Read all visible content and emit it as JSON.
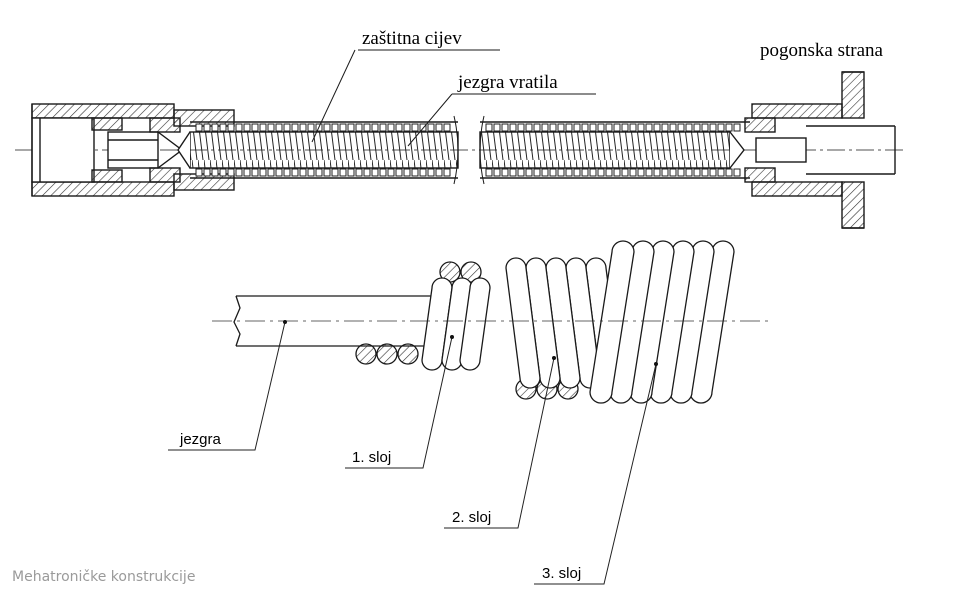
{
  "top_labels": {
    "tube": "zaštitna cijev",
    "core": "jezgra vratila",
    "drive": "pogonska strana"
  },
  "bottom_labels": {
    "core": "jezgra",
    "layer1": "1. sloj",
    "layer2": "2. sloj",
    "layer3": "3. sloj"
  },
  "footer": "Mehatroničke konstrukcije",
  "colors": {
    "line": "#1a1a1a",
    "hatch": "#333333"
  }
}
